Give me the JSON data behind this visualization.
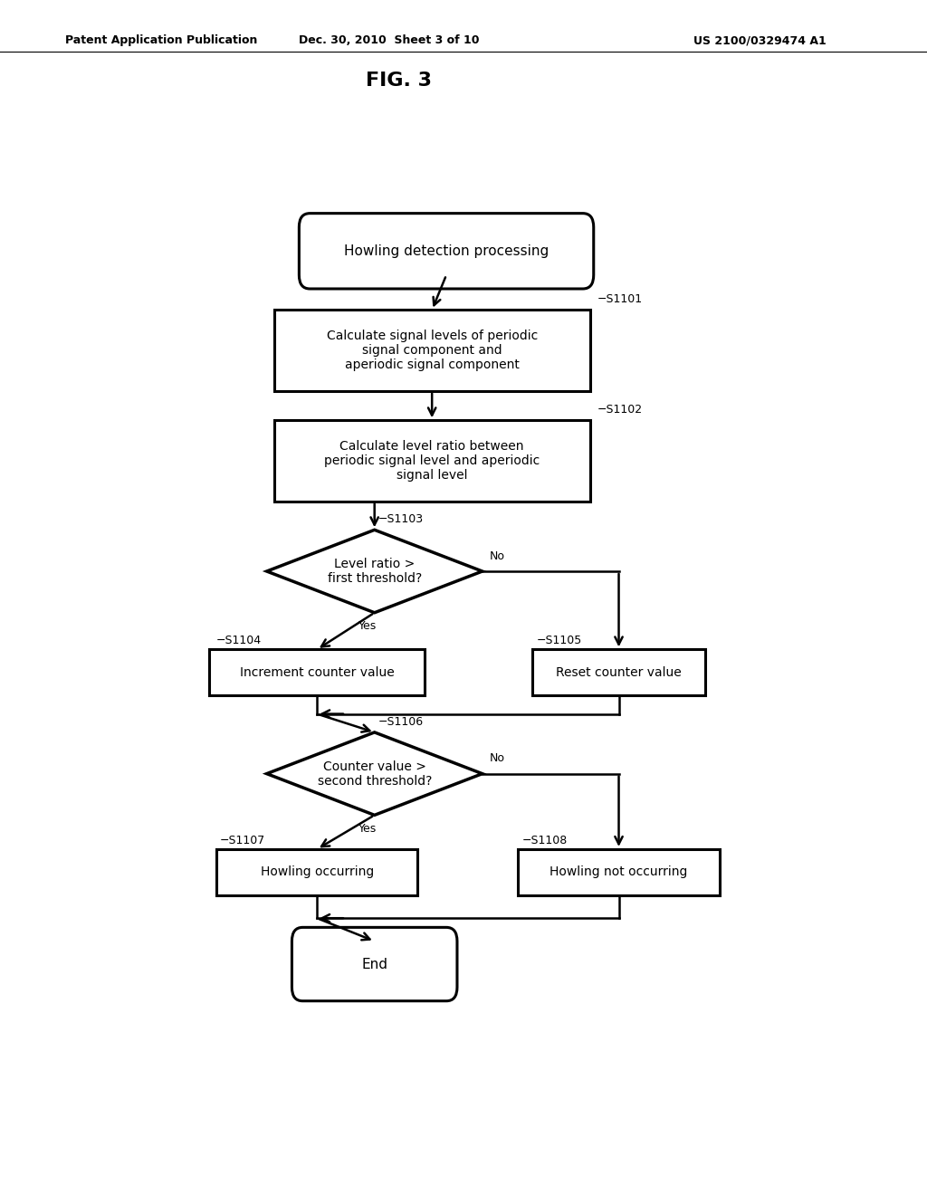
{
  "bg_color": "#ffffff",
  "text_color": "#000000",
  "header_left": "Patent Application Publication",
  "header_mid": "Dec. 30, 2010  Sheet 3 of 10",
  "header_right": "US 2100/0329474 A1",
  "fig_label": "FIG. 3"
}
